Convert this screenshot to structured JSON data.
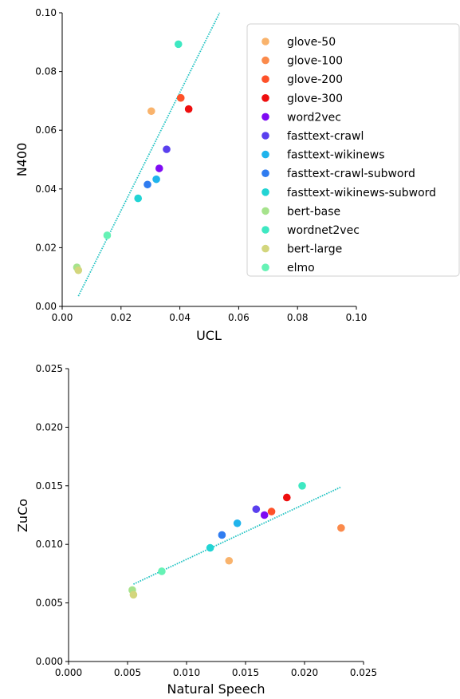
{
  "legend": {
    "items": [
      {
        "label": "glove-50",
        "color": "#f9b36c"
      },
      {
        "label": "glove-100",
        "color": "#fb8a4b"
      },
      {
        "label": "glove-200",
        "color": "#fe5129"
      },
      {
        "label": "glove-300",
        "color": "#ee0e0e"
      },
      {
        "label": "word2vec",
        "color": "#7f0bf3"
      },
      {
        "label": "fasttext-crawl",
        "color": "#5a40ee"
      },
      {
        "label": "fasttext-wikinews",
        "color": "#20b4ec"
      },
      {
        "label": "fasttext-crawl-subword",
        "color": "#2f7cf0"
      },
      {
        "label": "fasttext-wikinews-subword",
        "color": "#22d4d4"
      },
      {
        "label": "bert-base",
        "color": "#a6e38c"
      },
      {
        "label": "wordnet2vec",
        "color": "#3ee8c2"
      },
      {
        "label": "bert-large",
        "color": "#d3d67d"
      },
      {
        "label": "elmo",
        "color": "#66f2b5"
      }
    ],
    "placement": "upper-right (outside plot, top chart)"
  },
  "chart_data": [
    {
      "type": "scatter",
      "title": "",
      "xlabel": "UCL",
      "ylabel": "N400",
      "xlim": [
        0,
        0.1
      ],
      "ylim": [
        0,
        0.1
      ],
      "xticks": [
        "0.00",
        "0.02",
        "0.04",
        "0.06",
        "0.08",
        "0.10"
      ],
      "yticks": [
        "0.00",
        "0.02",
        "0.04",
        "0.06",
        "0.08",
        "0.10"
      ],
      "grid": false,
      "trendline": {
        "x": [
          0.0055,
          0.0535
        ],
        "y": [
          0.0035,
          0.1
        ],
        "color": "#22c3c3",
        "style": "dotted"
      },
      "points": [
        {
          "name": "glove-50",
          "x": 0.0303,
          "y": 0.0665
        },
        {
          "name": "glove-100",
          "x": 0.0403,
          "y": 0.071
        },
        {
          "name": "glove-200",
          "x": 0.0403,
          "y": 0.071
        },
        {
          "name": "glove-300",
          "x": 0.043,
          "y": 0.0672
        },
        {
          "name": "word2vec",
          "x": 0.033,
          "y": 0.047
        },
        {
          "name": "fasttext-crawl",
          "x": 0.0355,
          "y": 0.0535
        },
        {
          "name": "fasttext-wikinews",
          "x": 0.032,
          "y": 0.0433
        },
        {
          "name": "fasttext-crawl-subword",
          "x": 0.029,
          "y": 0.0415
        },
        {
          "name": "fasttext-wikinews-subword",
          "x": 0.0258,
          "y": 0.0368
        },
        {
          "name": "bert-base",
          "x": 0.005,
          "y": 0.0133
        },
        {
          "name": "wordnet2vec",
          "x": 0.0395,
          "y": 0.0893
        },
        {
          "name": "bert-large",
          "x": 0.0055,
          "y": 0.0123
        },
        {
          "name": "elmo",
          "x": 0.0153,
          "y": 0.0242
        }
      ]
    },
    {
      "type": "scatter",
      "title": "",
      "xlabel": "Natural Speech",
      "ylabel": "ZuCo",
      "xlim": [
        0,
        0.025
      ],
      "ylim": [
        0,
        0.025
      ],
      "xticks": [
        "0.000",
        "0.005",
        "0.010",
        "0.015",
        "0.020",
        "0.025"
      ],
      "yticks": [
        "0.000",
        "0.005",
        "0.010",
        "0.015",
        "0.020",
        "0.025"
      ],
      "grid": false,
      "trendline": {
        "x": [
          0.0055,
          0.0231
        ],
        "y": [
          0.0066,
          0.0149
        ],
        "color": "#22c3c3",
        "style": "dotted"
      },
      "points": [
        {
          "name": "glove-50",
          "x": 0.0136,
          "y": 0.0086
        },
        {
          "name": "glove-100",
          "x": 0.0231,
          "y": 0.0114
        },
        {
          "name": "glove-200",
          "x": 0.0172,
          "y": 0.0128
        },
        {
          "name": "glove-300",
          "x": 0.0185,
          "y": 0.014
        },
        {
          "name": "word2vec",
          "x": 0.0166,
          "y": 0.0125
        },
        {
          "name": "fasttext-crawl",
          "x": 0.0159,
          "y": 0.013
        },
        {
          "name": "fasttext-wikinews",
          "x": 0.0143,
          "y": 0.0118
        },
        {
          "name": "fasttext-crawl-subword",
          "x": 0.013,
          "y": 0.0108
        },
        {
          "name": "fasttext-wikinews-subword",
          "x": 0.012,
          "y": 0.0097
        },
        {
          "name": "bert-base",
          "x": 0.0054,
          "y": 0.0061
        },
        {
          "name": "wordnet2vec",
          "x": 0.0198,
          "y": 0.015
        },
        {
          "name": "bert-large",
          "x": 0.0055,
          "y": 0.0057
        },
        {
          "name": "elmo",
          "x": 0.0079,
          "y": 0.0077
        }
      ]
    }
  ]
}
